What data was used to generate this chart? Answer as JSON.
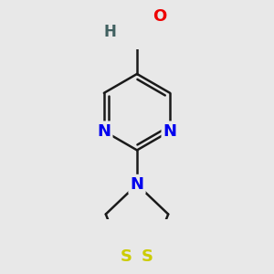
{
  "background_color": "#e8e8e8",
  "atom_colors": {
    "C": "#303030",
    "N": "#0000ee",
    "O": "#ee0000",
    "S": "#cccc00",
    "H": "#406060"
  },
  "bond_color": "#1a1a1a",
  "bond_width": 1.8,
  "font_size_atoms": 13,
  "figsize": [
    3.0,
    3.0
  ],
  "dpi": 100
}
